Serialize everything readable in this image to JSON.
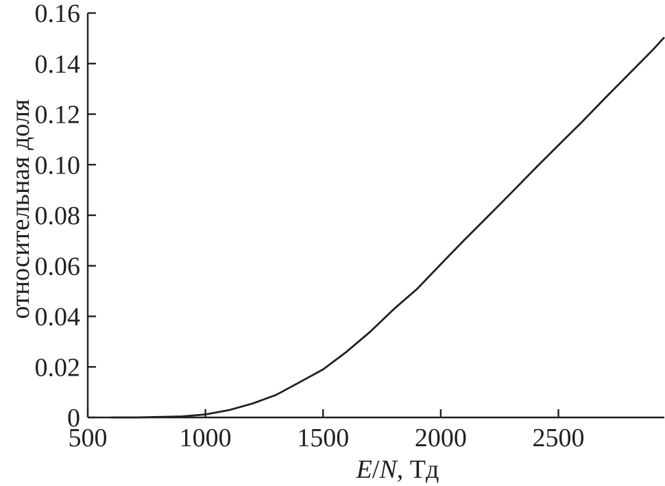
{
  "chart_data": {
    "type": "line",
    "xlabel": "E/N, Тд",
    "xlabel_parts": {
      "var1": "E",
      "slash": "/",
      "var2": "N",
      "unit": ", Тд"
    },
    "ylabel": "относительная доля",
    "xlim": [
      500,
      2950
    ],
    "ylim": [
      0,
      0.16
    ],
    "x_ticks": [
      500,
      1000,
      1500,
      2000,
      2500
    ],
    "x_tick_labels": [
      "500",
      "1000",
      "1500",
      "2000",
      "2500"
    ],
    "y_ticks": [
      0,
      0.02,
      0.04,
      0.06,
      0.08,
      0.1,
      0.12,
      0.14,
      0.16
    ],
    "y_tick_labels": [
      "0",
      "0.02",
      "0.04",
      "0.06",
      "0.08",
      "0.10",
      "0.12",
      "0.14",
      "0.16"
    ],
    "grid": false,
    "legend": "none",
    "line_color": "#231f20",
    "series": [
      {
        "x": [
          600,
          700,
          800,
          900,
          1000,
          1100,
          1200,
          1300,
          1400,
          1500,
          1600,
          1700,
          1800,
          1900,
          2000,
          2100,
          2200,
          2300,
          2400,
          2500,
          2600,
          2700,
          2800,
          2900,
          2950
        ],
        "y": [
          0.0,
          0.0,
          0.0002,
          0.0004,
          0.0012,
          0.0029,
          0.0055,
          0.0089,
          0.0139,
          0.019,
          0.026,
          0.0339,
          0.0428,
          0.0509,
          0.0606,
          0.0702,
          0.0795,
          0.0889,
          0.0984,
          0.1077,
          0.1169,
          0.1265,
          0.1359,
          0.1453,
          0.1504
        ]
      }
    ]
  }
}
